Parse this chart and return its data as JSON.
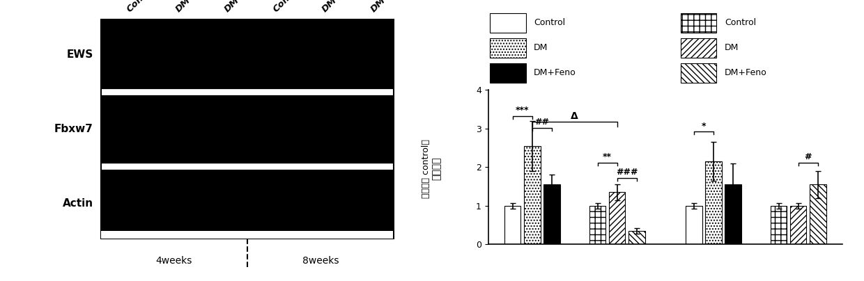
{
  "fig_width": 12.4,
  "fig_height": 4.04,
  "dpi": 100,
  "left_panel": {
    "row_labels": [
      "EWS",
      "Fbxw7",
      "Actin"
    ],
    "col_labels_top": [
      "Control",
      "DM",
      "DM+Feno",
      "Control",
      "DM",
      "DM+Feno"
    ],
    "bottom_labels": [
      "4weeks",
      "8weeks"
    ]
  },
  "right_panel": {
    "ylabel_parts": [
      "（相比于 control）",
      "蛋白表达"
    ],
    "ylim": [
      0,
      4
    ],
    "yticks": [
      0,
      1,
      2,
      3,
      4
    ],
    "data": {
      "EWS_4weeks": {
        "means": [
          1.0,
          2.55,
          1.55
        ],
        "errors": [
          0.07,
          0.65,
          0.25
        ]
      },
      "EWS_8weeks": {
        "means": [
          1.0,
          1.35,
          0.35
        ],
        "errors": [
          0.07,
          0.2,
          0.08
        ]
      },
      "Fbxw7_4weeks": {
        "means": [
          1.0,
          2.15,
          1.55
        ],
        "errors": [
          0.07,
          0.5,
          0.55
        ]
      },
      "Fbxw7_8weeks": {
        "means": [
          1.0,
          1.0,
          1.55
        ],
        "errors": [
          0.07,
          0.07,
          0.35
        ]
      }
    }
  }
}
